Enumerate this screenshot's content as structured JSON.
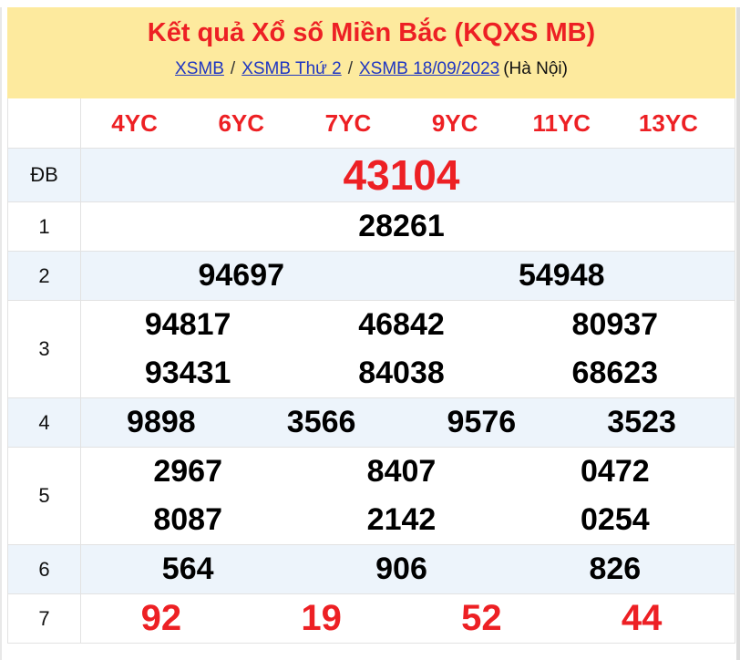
{
  "colors": {
    "accent_red": "#ed2024",
    "link_blue": "#1f36c2",
    "banner_bg": "#fdea9e",
    "alt_row_bg": "#edf4fb",
    "border": "#e2e2e2"
  },
  "header": {
    "title": "Kết quả Xổ số Miền Bắc (KQXS MB)",
    "breadcrumb": {
      "links": [
        "XSMB",
        "XSMB Thứ 2",
        "XSMB 18/09/2023"
      ],
      "separator": "/",
      "suffix": "(Hà Nội)"
    }
  },
  "table": {
    "column_headers": [
      "4YC",
      "6YC",
      "7YC",
      "9YC",
      "11YC",
      "13YC"
    ],
    "rows": [
      {
        "label": "ĐB",
        "alt": true,
        "emphasis": true,
        "jackpot": true,
        "lines": [
          [
            "43104"
          ]
        ]
      },
      {
        "label": "1",
        "alt": false,
        "emphasis": false,
        "lines": [
          [
            "28261"
          ]
        ]
      },
      {
        "label": "2",
        "alt": true,
        "emphasis": false,
        "lines": [
          [
            "94697",
            "54948"
          ]
        ]
      },
      {
        "label": "3",
        "alt": false,
        "emphasis": false,
        "lines": [
          [
            "94817",
            "46842",
            "80937"
          ],
          [
            "93431",
            "84038",
            "68623"
          ]
        ]
      },
      {
        "label": "4",
        "alt": true,
        "emphasis": false,
        "lines": [
          [
            "9898",
            "3566",
            "9576",
            "3523"
          ]
        ]
      },
      {
        "label": "5",
        "alt": false,
        "emphasis": false,
        "lines": [
          [
            "2967",
            "8407",
            "0472"
          ],
          [
            "8087",
            "2142",
            "0254"
          ]
        ]
      },
      {
        "label": "6",
        "alt": true,
        "emphasis": false,
        "lines": [
          [
            "564",
            "906",
            "826"
          ]
        ]
      },
      {
        "label": "7",
        "alt": false,
        "emphasis": true,
        "lines": [
          [
            "92",
            "19",
            "52",
            "44"
          ]
        ]
      }
    ]
  }
}
